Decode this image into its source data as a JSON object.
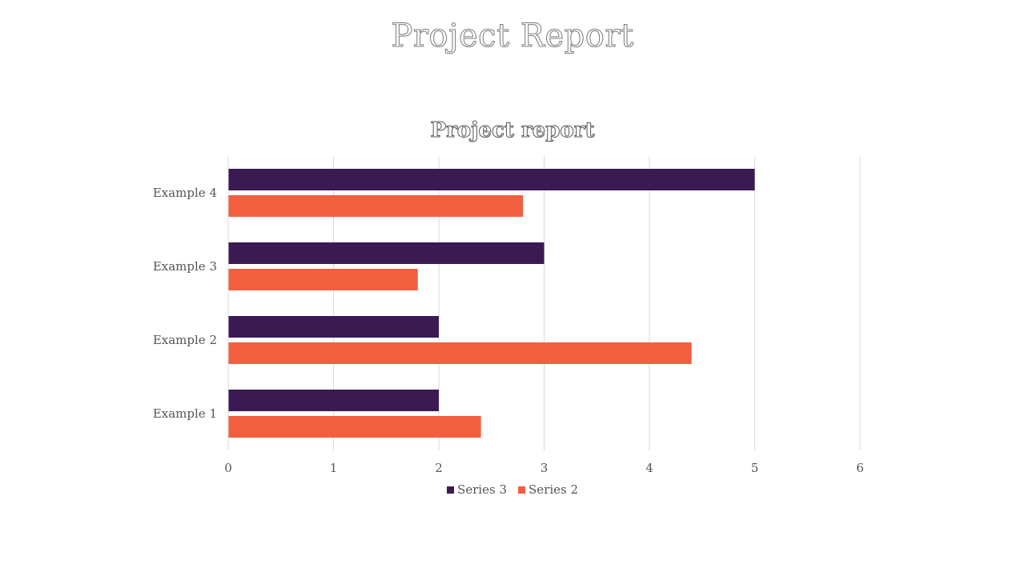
{
  "slide": {
    "title": "Project Report"
  },
  "chart_data": {
    "type": "bar",
    "orientation": "horizontal",
    "title": "Project report",
    "categories": [
      "Example 1",
      "Example 2",
      "Example 3",
      "Example 4"
    ],
    "series": [
      {
        "name": "Series 3",
        "values": [
          2,
          2,
          3,
          5
        ],
        "color": "#3b1a52"
      },
      {
        "name": "Series 2",
        "values": [
          2.4,
          4.4,
          1.8,
          2.8
        ],
        "color": "#f15f3f"
      }
    ],
    "xlim": [
      0,
      6
    ],
    "xticks": [
      "0",
      "1",
      "2",
      "3",
      "4",
      "5",
      "6"
    ],
    "grid": true,
    "legend": "bottom"
  }
}
